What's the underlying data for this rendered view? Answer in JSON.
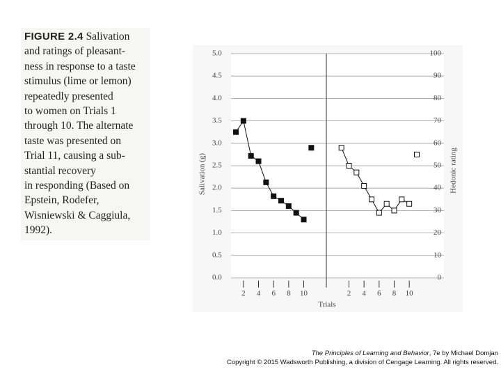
{
  "caption": {
    "label": "FIGURE 2.4",
    "lines": [
      "Salivation",
      "and ratings of pleasant-",
      "ness in response to a taste",
      "stimulus (lime or lemon)",
      "repeatedly presented",
      "to women on Trials 1",
      "through 10. The alternate",
      "taste was presented on",
      "Trial 11, causing a sub-",
      "stantial recovery",
      "in responding (Based on",
      "Epstein, Rodefer,",
      "Wisniewski & Caggiula,",
      "1992)."
    ]
  },
  "footer": {
    "book": "The Principles of Learning and Behavior",
    "edition": ", 7e by Michael Domjan",
    "copyright": "Copyright © 2015 Wadsworth Publishing, a division of Cengage Learning. All rights reserved."
  },
  "chart_data": {
    "type": "line",
    "xlabel": "Trials",
    "ylabel": "Salivation (g)",
    "y2label": "Hedonic rating",
    "ylim": [
      0,
      5
    ],
    "yticks": [
      {
        "value": 0,
        "label": "0.0"
      },
      {
        "value": 0.5,
        "label": "0.5"
      },
      {
        "value": 1,
        "label": "1.0"
      },
      {
        "value": 1.5,
        "label": "1.5"
      },
      {
        "value": 2,
        "label": "2.0"
      },
      {
        "value": 2.5,
        "label": "2.5"
      },
      {
        "value": 3,
        "label": "3.0"
      },
      {
        "value": 3.5,
        "label": "3.5"
      },
      {
        "value": 4,
        "label": "4.0"
      },
      {
        "value": 4.5,
        "label": "4.5"
      },
      {
        "value": 5,
        "label": "5.0"
      }
    ],
    "y2lim": [
      0,
      100
    ],
    "y2ticks": [
      0,
      10,
      20,
      30,
      40,
      50,
      60,
      70,
      80,
      90,
      100
    ],
    "grid": true,
    "panels": [
      {
        "axis": "y",
        "marker": "filled",
        "color": "#111111",
        "xlim": [
          0.35,
          13
        ],
        "xticks": [
          2,
          4,
          6,
          8,
          10
        ],
        "x": [
          1,
          2,
          3,
          4,
          5,
          6,
          7,
          8,
          9,
          10
        ],
        "values": [
          3.25,
          3.5,
          2.72,
          2.6,
          2.13,
          1.82,
          1.72,
          1.6,
          1.45,
          1.3
        ],
        "test_x": [
          11
        ],
        "test_values": [
          2.9
        ]
      },
      {
        "axis": "y2",
        "marker": "open",
        "color": "#111111",
        "xlim": [
          -1,
          14.6
        ],
        "xticks": [
          2,
          4,
          6,
          8,
          10
        ],
        "x": [
          1,
          2,
          3,
          4,
          5,
          6,
          7,
          8,
          9,
          10
        ],
        "values": [
          58,
          50,
          47,
          41,
          35,
          29,
          33,
          30,
          35,
          33
        ],
        "test_x": [
          11
        ],
        "test_values": [
          55
        ]
      }
    ]
  }
}
